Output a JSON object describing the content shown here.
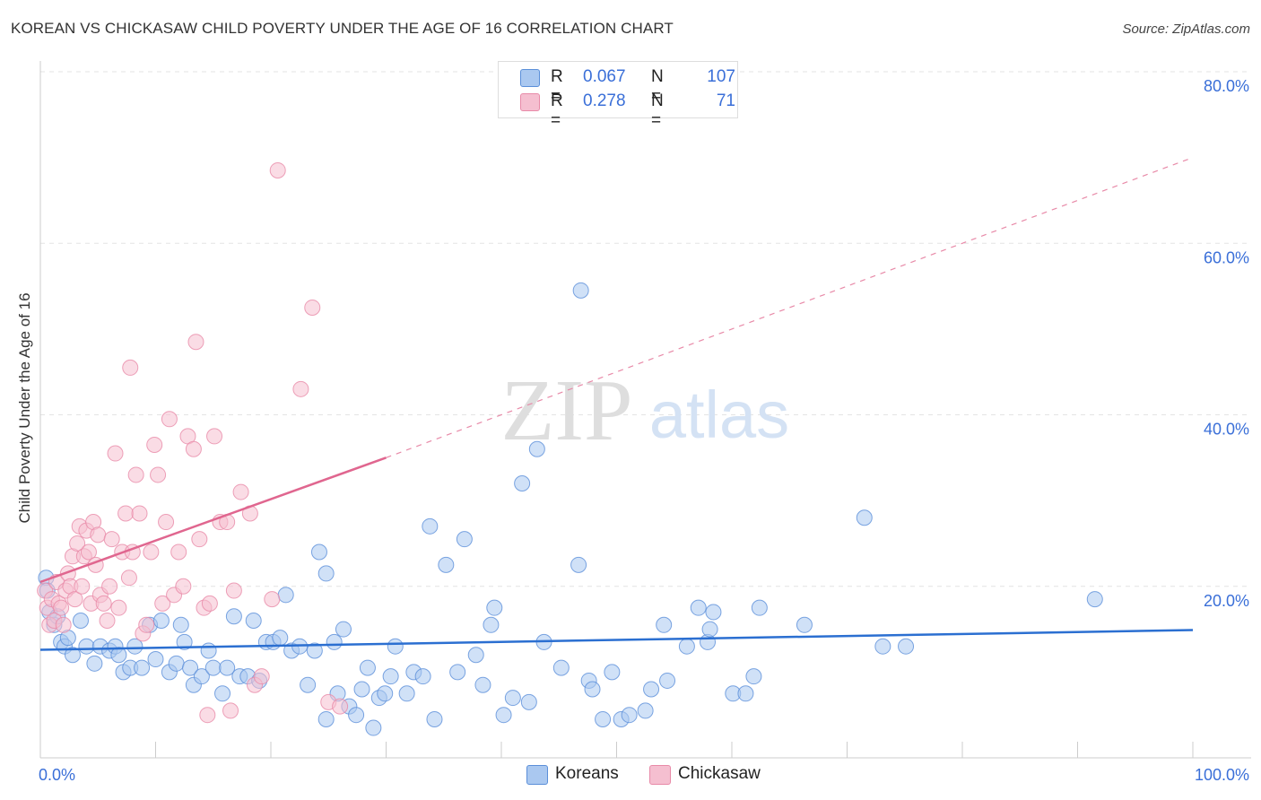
{
  "title": "KOREAN VS CHICKASAW CHILD POVERTY UNDER THE AGE OF 16 CORRELATION CHART",
  "source": "Source: ZipAtlas.com",
  "watermark": {
    "zip": "ZIP",
    "atlas": "atlas"
  },
  "legend": {
    "rows": [
      {
        "r_label": "R =",
        "r_value": "0.067",
        "n_label": "N =",
        "n_value": "107"
      },
      {
        "r_label": "R =",
        "r_value": "0.278",
        "n_label": "N =",
        "n_value": "71"
      }
    ]
  },
  "chart_data": {
    "type": "scatter",
    "ylabel": "Child Poverty Under the Age of 16",
    "xlim": [
      0,
      100
    ],
    "ylim": [
      0,
      80
    ],
    "y_ticks": [
      {
        "value": 20,
        "label": "20.0%"
      },
      {
        "value": 40,
        "label": "40.0%"
      },
      {
        "value": 60,
        "label": "60.0%"
      },
      {
        "value": 80,
        "label": "80.0%"
      }
    ],
    "x_ticks": [
      {
        "value": 0,
        "label": "0.0%"
      },
      {
        "value": 100,
        "label": "100.0%"
      }
    ],
    "grid": true,
    "legend_position": "bottom-center",
    "series": [
      {
        "name": "Koreans",
        "color": "#5b8fd9",
        "fill": "#aac8f0",
        "trend": {
          "x": [
            0,
            100
          ],
          "y": [
            12.6,
            14.9
          ],
          "style": "solid"
        },
        "points": [
          [
            0.5,
            21
          ],
          [
            0.6,
            19.5
          ],
          [
            0.8,
            17
          ],
          [
            1.2,
            15.5
          ],
          [
            1.5,
            16.5
          ],
          [
            1.8,
            13.5
          ],
          [
            2.1,
            13
          ],
          [
            2.4,
            14
          ],
          [
            2.8,
            12
          ],
          [
            3.5,
            16
          ],
          [
            4,
            13
          ],
          [
            4.7,
            11
          ],
          [
            5.2,
            13
          ],
          [
            6,
            12.5
          ],
          [
            6.5,
            13
          ],
          [
            6.8,
            12
          ],
          [
            7.2,
            10
          ],
          [
            7.8,
            10.5
          ],
          [
            8.2,
            13
          ],
          [
            8.8,
            10.5
          ],
          [
            9.5,
            15.5
          ],
          [
            10,
            11.5
          ],
          [
            10.5,
            16
          ],
          [
            11.2,
            10
          ],
          [
            11.8,
            11
          ],
          [
            12.2,
            15.5
          ],
          [
            12.5,
            13.5
          ],
          [
            13,
            10.5
          ],
          [
            13.3,
            8.5
          ],
          [
            14,
            9.5
          ],
          [
            14.6,
            12.5
          ],
          [
            15,
            10.5
          ],
          [
            15.8,
            7.5
          ],
          [
            16.2,
            10.5
          ],
          [
            16.8,
            16.5
          ],
          [
            17.3,
            9.5
          ],
          [
            18,
            9.5
          ],
          [
            18.5,
            16
          ],
          [
            19,
            9
          ],
          [
            19.6,
            13.5
          ],
          [
            20.2,
            13.5
          ],
          [
            20.8,
            14
          ],
          [
            21.3,
            19
          ],
          [
            21.8,
            12.5
          ],
          [
            22.5,
            13
          ],
          [
            23.2,
            8.5
          ],
          [
            23.8,
            12.5
          ],
          [
            24.2,
            24
          ],
          [
            24.8,
            21.5
          ],
          [
            25.5,
            13.5
          ],
          [
            25.8,
            7.5
          ],
          [
            26.3,
            15
          ],
          [
            26.8,
            6
          ],
          [
            27.4,
            5
          ],
          [
            27.9,
            8
          ],
          [
            28.4,
            10.5
          ],
          [
            28.9,
            3.5
          ],
          [
            29.4,
            7
          ],
          [
            29.9,
            7.5
          ],
          [
            30.4,
            9.5
          ],
          [
            30.8,
            13
          ],
          [
            31.8,
            7.5
          ],
          [
            32.4,
            10
          ],
          [
            33.2,
            9.5
          ],
          [
            33.8,
            27
          ],
          [
            34.2,
            4.5
          ],
          [
            35.2,
            22.5
          ],
          [
            36.2,
            10
          ],
          [
            36.8,
            25.5
          ],
          [
            37.8,
            12
          ],
          [
            38.4,
            8.5
          ],
          [
            39.1,
            15.5
          ],
          [
            39.4,
            17.5
          ],
          [
            40.2,
            5
          ],
          [
            41,
            7
          ],
          [
            41.8,
            32
          ],
          [
            42.4,
            6.5
          ],
          [
            43.1,
            36
          ],
          [
            43.7,
            13.5
          ],
          [
            45.2,
            10.5
          ],
          [
            46.7,
            22.5
          ],
          [
            46.9,
            54.5
          ],
          [
            47.6,
            9
          ],
          [
            47.9,
            8
          ],
          [
            48.8,
            4.5
          ],
          [
            49.6,
            10
          ],
          [
            50.4,
            4.5
          ],
          [
            51.1,
            5
          ],
          [
            52.5,
            5.5
          ],
          [
            53,
            8
          ],
          [
            54.1,
            15.5
          ],
          [
            54.4,
            9
          ],
          [
            56.1,
            13
          ],
          [
            57.1,
            17.5
          ],
          [
            57.9,
            13.5
          ],
          [
            58.1,
            15
          ],
          [
            58.4,
            17
          ],
          [
            60.1,
            7.5
          ],
          [
            61.2,
            7.5
          ],
          [
            61.9,
            9.5
          ],
          [
            62.4,
            17.5
          ],
          [
            66.3,
            15.5
          ],
          [
            71.5,
            28
          ],
          [
            73.1,
            13
          ],
          [
            75.1,
            13
          ],
          [
            91.5,
            18.5
          ],
          [
            24.8,
            4.5
          ]
        ]
      },
      {
        "name": "Chickasaw",
        "color": "#e88aa8",
        "fill": "#f5bfd0",
        "trend": {
          "x": [
            0,
            30
          ],
          "y": [
            20.5,
            35.0
          ],
          "dashed_to": [
            100,
            70.0
          ],
          "style": "solid"
        },
        "points": [
          [
            0.4,
            19.5
          ],
          [
            0.6,
            17.5
          ],
          [
            0.8,
            15.5
          ],
          [
            1,
            18.5
          ],
          [
            1.2,
            16
          ],
          [
            1.4,
            20.5
          ],
          [
            1.6,
            18
          ],
          [
            1.8,
            17.5
          ],
          [
            2,
            15.5
          ],
          [
            2.2,
            19.5
          ],
          [
            2.4,
            21.5
          ],
          [
            2.6,
            20
          ],
          [
            2.8,
            23.5
          ],
          [
            3,
            18.5
          ],
          [
            3.2,
            25
          ],
          [
            3.4,
            27
          ],
          [
            3.6,
            20
          ],
          [
            3.8,
            23.5
          ],
          [
            4,
            26.5
          ],
          [
            4.2,
            24
          ],
          [
            4.4,
            18
          ],
          [
            4.6,
            27.5
          ],
          [
            4.8,
            22.5
          ],
          [
            5,
            26
          ],
          [
            5.2,
            19
          ],
          [
            5.5,
            18
          ],
          [
            5.8,
            16
          ],
          [
            6,
            20
          ],
          [
            6.2,
            25.5
          ],
          [
            6.5,
            35.5
          ],
          [
            6.8,
            17.5
          ],
          [
            7.1,
            24
          ],
          [
            7.4,
            28.5
          ],
          [
            7.7,
            21
          ],
          [
            8,
            24
          ],
          [
            8.3,
            33
          ],
          [
            8.6,
            28.5
          ],
          [
            8.9,
            14.5
          ],
          [
            9.2,
            15.5
          ],
          [
            9.6,
            24
          ],
          [
            9.9,
            36.5
          ],
          [
            10.2,
            33
          ],
          [
            10.6,
            18
          ],
          [
            10.9,
            27.5
          ],
          [
            11.2,
            39.5
          ],
          [
            11.6,
            19
          ],
          [
            12,
            24
          ],
          [
            12.4,
            20
          ],
          [
            12.8,
            37.5
          ],
          [
            13.3,
            36
          ],
          [
            13.8,
            25.5
          ],
          [
            14.2,
            17.5
          ],
          [
            14.7,
            18
          ],
          [
            15.1,
            37.5
          ],
          [
            15.6,
            27.5
          ],
          [
            16.2,
            27.5
          ],
          [
            16.8,
            19.5
          ],
          [
            17.4,
            31
          ],
          [
            18.2,
            28.5
          ],
          [
            18.6,
            8.5
          ],
          [
            19.2,
            9.5
          ],
          [
            20.1,
            18.5
          ],
          [
            20.6,
            68.5
          ],
          [
            22.6,
            43
          ],
          [
            23.6,
            52.5
          ],
          [
            25,
            6.5
          ],
          [
            26,
            6
          ],
          [
            14.5,
            5
          ],
          [
            16.5,
            5.5
          ],
          [
            7.8,
            45.5
          ],
          [
            13.5,
            48.5
          ]
        ]
      }
    ]
  }
}
